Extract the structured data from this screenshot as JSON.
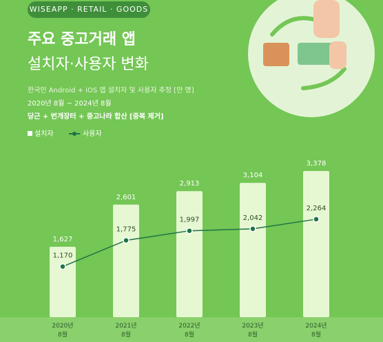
{
  "chart_data": {
    "type": "bar",
    "badge": "WISEAPP · RETAIL · GOODS",
    "title": "주요 중고거래 앱",
    "subtitle": "설치자·사용자 변화",
    "notes": [
      "한국인 Android + iOS 앱 설치자 및 사용자 추정 [만 명]",
      "2020년 8월 ~ 2024년 8월",
      "당근 + 번개장터 + 중고나라 합산 [중복 제거]"
    ],
    "categories": [
      "2020년 8월",
      "2021년 8월",
      "2022년 8월",
      "2023년 8월",
      "2024년 8월"
    ],
    "ylim": [
      0,
      4000
    ],
    "series": [
      {
        "name": "설치자",
        "type": "bar",
        "color": "#e6f8d2",
        "values": [
          1627,
          2601,
          2913,
          3104,
          3378
        ],
        "value_labels": [
          "1,627",
          "2,601",
          "2,913",
          "3,104",
          "3,378"
        ]
      },
      {
        "name": "사용자",
        "type": "line",
        "color": "#1e7347",
        "values": [
          1170,
          1775,
          1997,
          2042,
          2264
        ],
        "value_labels": [
          "1,170",
          "1,775",
          "1,997",
          "2,042",
          "2,264"
        ]
      }
    ]
  }
}
